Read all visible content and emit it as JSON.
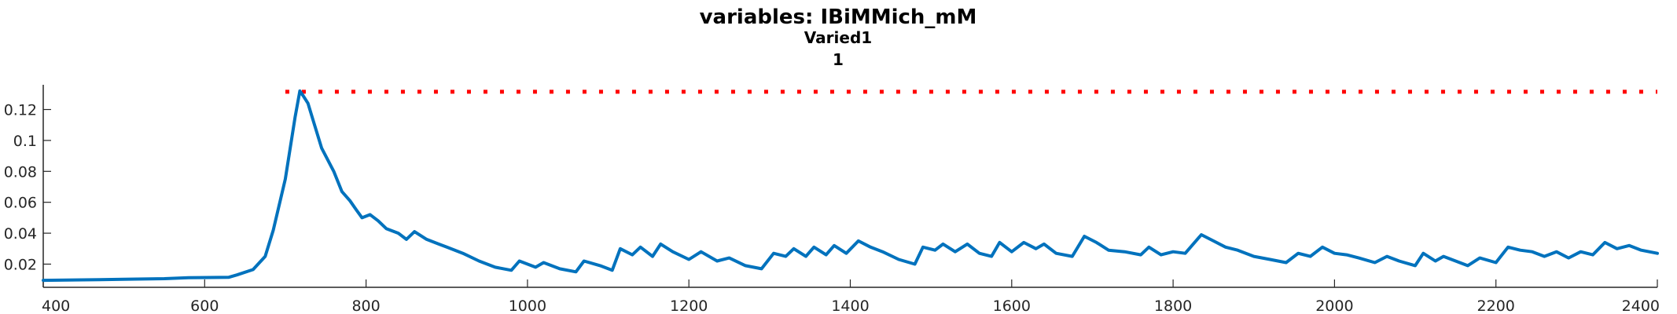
{
  "chart_data": {
    "type": "line",
    "title": "variables: IBiMMich_mM",
    "subtitle": "Varied1",
    "subtitle2": "1",
    "xlabel": "",
    "ylabel": "",
    "xlim": [
      400,
      2400
    ],
    "ylim": [
      0.005,
      0.136
    ],
    "x_ticks": [
      400,
      600,
      800,
      1000,
      1200,
      1400,
      1600,
      1800,
      2000,
      2200,
      2400
    ],
    "x_tick_labels": [
      "400",
      "600",
      "800",
      "1000",
      "1200",
      "1400",
      "1600",
      "1800",
      "2000",
      "2200",
      "2400"
    ],
    "y_ticks": [
      0.02,
      0.04,
      0.06,
      0.08,
      0.1,
      0.12
    ],
    "y_tick_labels": [
      "0.02",
      "0.04",
      "0.06",
      "0.08",
      "0.1",
      "0.12"
    ],
    "grid": false,
    "colors": {
      "series": "#0072BD",
      "threshold": "#FF0000",
      "axis": "#262626"
    },
    "threshold": {
      "y": 0.1315,
      "x_start": 700,
      "x_end": 2400,
      "style": "dotted"
    },
    "series": [
      {
        "values": [
          [
            400,
            0.0095
          ],
          [
            450,
            0.0098
          ],
          [
            500,
            0.0102
          ],
          [
            550,
            0.0106
          ],
          [
            580,
            0.0112
          ],
          [
            630,
            0.0115
          ],
          [
            640,
            0.013
          ],
          [
            660,
            0.0165
          ],
          [
            675,
            0.025
          ],
          [
            685,
            0.042
          ],
          [
            700,
            0.075
          ],
          [
            712,
            0.115
          ],
          [
            718,
            0.132
          ],
          [
            722,
            0.129
          ],
          [
            728,
            0.124
          ],
          [
            735,
            0.112
          ],
          [
            745,
            0.095
          ],
          [
            760,
            0.08
          ],
          [
            770,
            0.067
          ],
          [
            780,
            0.061
          ],
          [
            788,
            0.055
          ],
          [
            795,
            0.05
          ],
          [
            805,
            0.052
          ],
          [
            815,
            0.048
          ],
          [
            825,
            0.043
          ],
          [
            840,
            0.04
          ],
          [
            850,
            0.036
          ],
          [
            860,
            0.041
          ],
          [
            875,
            0.036
          ],
          [
            890,
            0.033
          ],
          [
            900,
            0.031
          ],
          [
            920,
            0.027
          ],
          [
            940,
            0.022
          ],
          [
            960,
            0.018
          ],
          [
            980,
            0.016
          ],
          [
            990,
            0.022
          ],
          [
            1010,
            0.018
          ],
          [
            1020,
            0.021
          ],
          [
            1040,
            0.017
          ],
          [
            1060,
            0.015
          ],
          [
            1070,
            0.022
          ],
          [
            1090,
            0.019
          ],
          [
            1105,
            0.016
          ],
          [
            1115,
            0.03
          ],
          [
            1130,
            0.026
          ],
          [
            1140,
            0.031
          ],
          [
            1155,
            0.025
          ],
          [
            1165,
            0.033
          ],
          [
            1180,
            0.028
          ],
          [
            1200,
            0.023
          ],
          [
            1215,
            0.028
          ],
          [
            1235,
            0.022
          ],
          [
            1250,
            0.024
          ],
          [
            1270,
            0.019
          ],
          [
            1290,
            0.017
          ],
          [
            1305,
            0.027
          ],
          [
            1320,
            0.025
          ],
          [
            1330,
            0.03
          ],
          [
            1345,
            0.025
          ],
          [
            1355,
            0.031
          ],
          [
            1370,
            0.026
          ],
          [
            1380,
            0.032
          ],
          [
            1395,
            0.027
          ],
          [
            1410,
            0.035
          ],
          [
            1425,
            0.031
          ],
          [
            1440,
            0.028
          ],
          [
            1460,
            0.023
          ],
          [
            1480,
            0.02
          ],
          [
            1490,
            0.031
          ],
          [
            1505,
            0.029
          ],
          [
            1515,
            0.033
          ],
          [
            1530,
            0.028
          ],
          [
            1545,
            0.033
          ],
          [
            1560,
            0.027
          ],
          [
            1575,
            0.025
          ],
          [
            1585,
            0.034
          ],
          [
            1600,
            0.028
          ],
          [
            1615,
            0.034
          ],
          [
            1630,
            0.03
          ],
          [
            1640,
            0.033
          ],
          [
            1655,
            0.027
          ],
          [
            1675,
            0.025
          ],
          [
            1690,
            0.038
          ],
          [
            1705,
            0.034
          ],
          [
            1720,
            0.029
          ],
          [
            1740,
            0.028
          ],
          [
            1760,
            0.026
          ],
          [
            1770,
            0.031
          ],
          [
            1785,
            0.026
          ],
          [
            1800,
            0.028
          ],
          [
            1815,
            0.027
          ],
          [
            1835,
            0.039
          ],
          [
            1850,
            0.035
          ],
          [
            1865,
            0.031
          ],
          [
            1880,
            0.029
          ],
          [
            1900,
            0.025
          ],
          [
            1920,
            0.023
          ],
          [
            1940,
            0.021
          ],
          [
            1955,
            0.027
          ],
          [
            1970,
            0.025
          ],
          [
            1985,
            0.031
          ],
          [
            2000,
            0.027
          ],
          [
            2015,
            0.026
          ],
          [
            2030,
            0.024
          ],
          [
            2050,
            0.021
          ],
          [
            2065,
            0.025
          ],
          [
            2080,
            0.022
          ],
          [
            2100,
            0.019
          ],
          [
            2110,
            0.027
          ],
          [
            2125,
            0.022
          ],
          [
            2135,
            0.025
          ],
          [
            2150,
            0.022
          ],
          [
            2165,
            0.019
          ],
          [
            2180,
            0.024
          ],
          [
            2200,
            0.021
          ],
          [
            2215,
            0.031
          ],
          [
            2230,
            0.029
          ],
          [
            2245,
            0.028
          ],
          [
            2260,
            0.025
          ],
          [
            2275,
            0.028
          ],
          [
            2290,
            0.024
          ],
          [
            2305,
            0.028
          ],
          [
            2320,
            0.026
          ],
          [
            2335,
            0.034
          ],
          [
            2350,
            0.03
          ],
          [
            2365,
            0.032
          ],
          [
            2380,
            0.029
          ],
          [
            2400,
            0.027
          ]
        ]
      }
    ]
  }
}
